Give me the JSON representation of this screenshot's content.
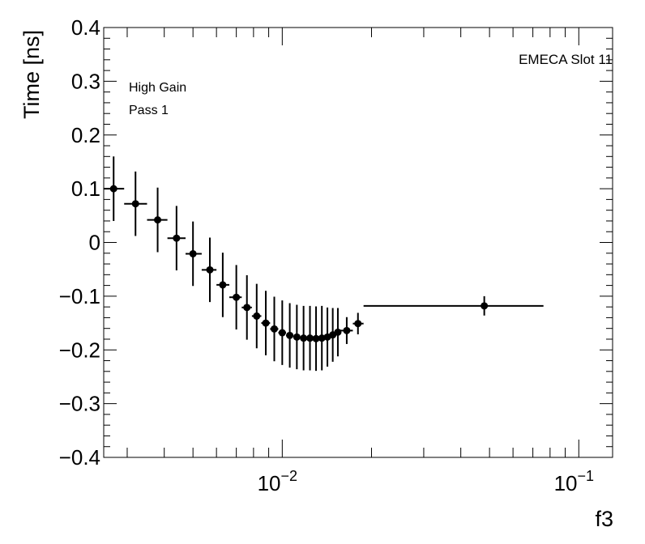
{
  "chart_data": {
    "type": "scatter",
    "title": "",
    "xlabel": "f3",
    "ylabel": "Time [ns]",
    "xscale": "log",
    "xlim": [
      0.0025,
      0.13
    ],
    "ylim": [
      -0.4,
      0.4
    ],
    "y_ticks": [
      {
        "value": 0.4,
        "label": "0.4"
      },
      {
        "value": 0.3,
        "label": "0.3"
      },
      {
        "value": 0.2,
        "label": "0.2"
      },
      {
        "value": 0.1,
        "label": "0.1"
      },
      {
        "value": 0.0,
        "label": "0"
      },
      {
        "value": -0.1,
        "label": "−0.1"
      },
      {
        "value": -0.2,
        "label": "−0.2"
      },
      {
        "value": -0.3,
        "label": "−0.3"
      },
      {
        "value": -0.4,
        "label": "−0.4"
      }
    ],
    "x_ticks": [
      {
        "value": 0.01,
        "base": "10",
        "exp": "−2"
      },
      {
        "value": 0.1,
        "base": "10",
        "exp": "−1"
      }
    ],
    "annotations": {
      "top_right": "EMECA Slot 11",
      "line1": "High Gain",
      "line2": "Pass 1"
    },
    "points": [
      {
        "x": 0.0027,
        "xlo": 0.0025,
        "xhi": 0.00293,
        "y": 0.1,
        "yerr": 0.06
      },
      {
        "x": 0.0032,
        "xlo": 0.00293,
        "xhi": 0.0035,
        "y": 0.072,
        "yerr": 0.06
      },
      {
        "x": 0.0038,
        "xlo": 0.0035,
        "xhi": 0.0041,
        "y": 0.042,
        "yerr": 0.06
      },
      {
        "x": 0.0044,
        "xlo": 0.0041,
        "xhi": 0.00472,
        "y": 0.008,
        "yerr": 0.06
      },
      {
        "x": 0.005,
        "xlo": 0.00472,
        "xhi": 0.00535,
        "y": -0.021,
        "yerr": 0.06
      },
      {
        "x": 0.0057,
        "xlo": 0.00535,
        "xhi": 0.006,
        "y": -0.051,
        "yerr": 0.06
      },
      {
        "x": 0.0063,
        "xlo": 0.006,
        "xhi": 0.00663,
        "y": -0.079,
        "yerr": 0.06
      },
      {
        "x": 0.007,
        "xlo": 0.00663,
        "xhi": 0.0073,
        "y": -0.102,
        "yerr": 0.06
      },
      {
        "x": 0.0076,
        "xlo": 0.0073,
        "xhi": 0.0079,
        "y": -0.121,
        "yerr": 0.06
      },
      {
        "x": 0.0082,
        "xlo": 0.0079,
        "xhi": 0.0085,
        "y": -0.137,
        "yerr": 0.06
      },
      {
        "x": 0.0088,
        "xlo": 0.0085,
        "xhi": 0.0091,
        "y": -0.15,
        "yerr": 0.06
      },
      {
        "x": 0.0094,
        "xlo": 0.0091,
        "xhi": 0.0097,
        "y": -0.161,
        "yerr": 0.06
      },
      {
        "x": 0.01,
        "xlo": 0.0097,
        "xhi": 0.0103,
        "y": -0.168,
        "yerr": 0.06
      },
      {
        "x": 0.0106,
        "xlo": 0.0103,
        "xhi": 0.0109,
        "y": -0.173,
        "yerr": 0.06
      },
      {
        "x": 0.0112,
        "xlo": 0.0109,
        "xhi": 0.0115,
        "y": -0.176,
        "yerr": 0.06
      },
      {
        "x": 0.0118,
        "xlo": 0.0115,
        "xhi": 0.0121,
        "y": -0.178,
        "yerr": 0.06
      },
      {
        "x": 0.0124,
        "xlo": 0.0121,
        "xhi": 0.0127,
        "y": -0.178,
        "yerr": 0.06
      },
      {
        "x": 0.013,
        "xlo": 0.0127,
        "xhi": 0.0133,
        "y": -0.179,
        "yerr": 0.06
      },
      {
        "x": 0.0136,
        "xlo": 0.0133,
        "xhi": 0.0139,
        "y": -0.178,
        "yerr": 0.06
      },
      {
        "x": 0.0142,
        "xlo": 0.0139,
        "xhi": 0.0145,
        "y": -0.176,
        "yerr": 0.055
      },
      {
        "x": 0.0148,
        "xlo": 0.0145,
        "xhi": 0.0151,
        "y": -0.172,
        "yerr": 0.05
      },
      {
        "x": 0.0154,
        "xlo": 0.0151,
        "xhi": 0.0157,
        "y": -0.167,
        "yerr": 0.045
      },
      {
        "x": 0.0165,
        "xlo": 0.0157,
        "xhi": 0.0173,
        "y": -0.164,
        "yerr": 0.025
      },
      {
        "x": 0.018,
        "xlo": 0.0173,
        "xhi": 0.0188,
        "y": -0.151,
        "yerr": 0.02
      },
      {
        "x": 0.048,
        "xlo": 0.0188,
        "xhi": 0.076,
        "y": -0.118,
        "yerr": 0.018
      }
    ],
    "grid": false,
    "legend": "none"
  }
}
